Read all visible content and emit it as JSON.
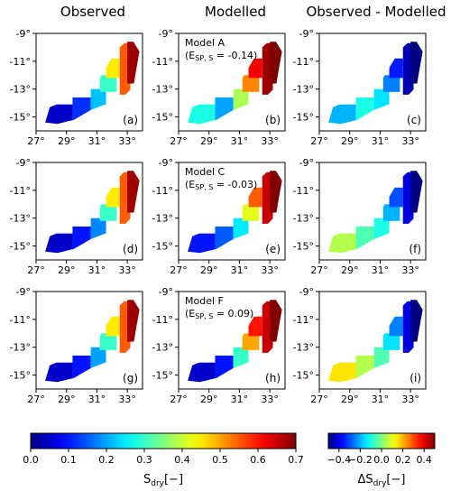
{
  "chart_data": {
    "type": "heatmap",
    "column_titles": [
      "Observed",
      "Modelled",
      "Observed - Modelled"
    ],
    "x_ticks": [
      "27°",
      "29°",
      "31°",
      "33°"
    ],
    "y_ticks": [
      "-9°",
      "-11°",
      "-13°",
      "-15°"
    ],
    "x_values": [
      27,
      29,
      31,
      33
    ],
    "y_values": [
      -9,
      -11,
      -13,
      -15
    ],
    "xlim": [
      27,
      34
    ],
    "ylim": [
      -16,
      -9
    ],
    "panels": [
      {
        "letter": "(a)",
        "row": 0,
        "col": 0,
        "kind": "obs",
        "values": [
          0.05,
          0.12,
          0.22,
          0.3,
          0.45,
          0.55,
          0.68
        ]
      },
      {
        "letter": "(b)",
        "row": 0,
        "col": 1,
        "kind": "mod",
        "model": "Model A",
        "metric_value": "-0.14",
        "values": [
          0.28,
          0.2,
          0.38,
          0.52,
          0.62,
          0.68,
          0.7
        ]
      },
      {
        "letter": "(c)",
        "row": 0,
        "col": 2,
        "kind": "diff",
        "values": [
          -0.2,
          -0.1,
          -0.15,
          -0.25,
          -0.35,
          -0.45,
          -0.5
        ]
      },
      {
        "letter": "(d)",
        "row": 1,
        "col": 0,
        "kind": "obs",
        "values": [
          0.05,
          0.1,
          0.18,
          0.3,
          0.45,
          0.55,
          0.68
        ]
      },
      {
        "letter": "(e)",
        "row": 1,
        "col": 1,
        "kind": "mod",
        "model": "Model C",
        "metric_value": "-0.03",
        "values": [
          0.1,
          0.15,
          0.25,
          0.42,
          0.55,
          0.65,
          0.7
        ]
      },
      {
        "letter": "(f)",
        "row": 1,
        "col": 2,
        "kind": "diff",
        "values": [
          0.05,
          -0.05,
          -0.1,
          -0.2,
          -0.3,
          -0.4,
          -0.5
        ]
      },
      {
        "letter": "(g)",
        "row": 2,
        "col": 0,
        "kind": "obs",
        "values": [
          0.05,
          0.1,
          0.2,
          0.3,
          0.45,
          0.55,
          0.68
        ]
      },
      {
        "letter": "(h)",
        "row": 2,
        "col": 1,
        "kind": "mod",
        "model": "Model F",
        "metric_value": "0.09",
        "values": [
          0.05,
          0.1,
          0.3,
          0.5,
          0.6,
          0.65,
          0.7
        ]
      },
      {
        "letter": "(i)",
        "row": 2,
        "col": 2,
        "kind": "diff",
        "values": [
          0.15,
          0.05,
          -0.05,
          -0.15,
          -0.25,
          -0.4,
          -0.5
        ]
      }
    ],
    "colorbar_left": {
      "label_main": "S",
      "label_sub": "dry",
      "label_unit": "[−]",
      "ticks": [
        "0.0",
        "0.1",
        "0.2",
        "0.3",
        "0.4",
        "0.5",
        "0.6",
        "0.7"
      ],
      "range": [
        0,
        0.7
      ]
    },
    "colorbar_right": {
      "label_main": "ΔS",
      "label_sub": "dry",
      "label_unit": "[−]",
      "ticks": [
        "−0.4",
        "−0.2",
        "0.0",
        "0.2",
        "0.4"
      ],
      "tick_values": [
        -0.4,
        -0.2,
        0.0,
        0.2,
        0.4
      ],
      "range": [
        -0.5,
        0.5
      ]
    },
    "metric_label": "E",
    "metric_sub": "SP, S"
  }
}
